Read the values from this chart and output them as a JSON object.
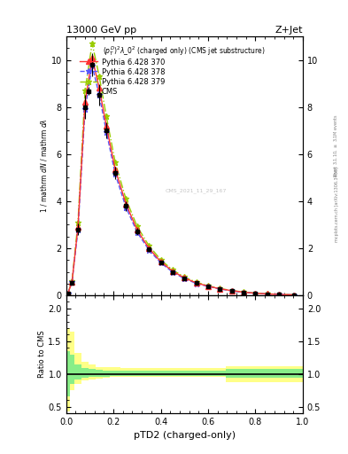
{
  "title_top": "13000 GeV pp",
  "title_right": "Z+Jet",
  "subplot_title": "$(p_T^D)^2\\lambda\\_0^2$ (charged only) (CMS jet substructure)",
  "xlabel": "pTD2 (charged-only)",
  "watermark": "CMS_2021_11_29_167",
  "x_edges": [
    0.0,
    0.015,
    0.035,
    0.065,
    0.095,
    0.125,
    0.155,
    0.185,
    0.23,
    0.275,
    0.325,
    0.375,
    0.425,
    0.475,
    0.525,
    0.575,
    0.625,
    0.675,
    0.725,
    0.775,
    0.825,
    0.875,
    0.925,
    1.0
  ],
  "cms_y": [
    0.08,
    0.55,
    2.8,
    8.0,
    9.8,
    8.5,
    7.0,
    5.2,
    3.8,
    2.7,
    1.95,
    1.4,
    1.0,
    0.72,
    0.52,
    0.38,
    0.27,
    0.19,
    0.13,
    0.09,
    0.06,
    0.04,
    0.02
  ],
  "cms_yerr": [
    0.01,
    0.08,
    0.25,
    0.5,
    0.5,
    0.45,
    0.35,
    0.28,
    0.2,
    0.15,
    0.1,
    0.08,
    0.06,
    0.04,
    0.03,
    0.02,
    0.015,
    0.01,
    0.008,
    0.005,
    0.003,
    0.002,
    0.001
  ],
  "pythia370_y": [
    0.08,
    0.58,
    2.9,
    8.2,
    10.1,
    8.8,
    7.2,
    5.35,
    3.9,
    2.78,
    2.0,
    1.43,
    1.03,
    0.74,
    0.53,
    0.39,
    0.28,
    0.2,
    0.135,
    0.092,
    0.062,
    0.041,
    0.022
  ],
  "pythia378_y": [
    0.08,
    0.56,
    2.78,
    7.9,
    9.75,
    8.5,
    6.95,
    5.15,
    3.75,
    2.68,
    1.93,
    1.38,
    0.99,
    0.71,
    0.51,
    0.38,
    0.27,
    0.19,
    0.13,
    0.088,
    0.059,
    0.04,
    0.021
  ],
  "pythia379_y": [
    0.085,
    0.62,
    3.1,
    8.7,
    10.7,
    9.3,
    7.6,
    5.65,
    4.1,
    2.93,
    2.11,
    1.51,
    1.08,
    0.78,
    0.56,
    0.41,
    0.29,
    0.21,
    0.14,
    0.097,
    0.065,
    0.043,
    0.023
  ],
  "x_band_edges": [
    0.0,
    0.015,
    0.035,
    0.065,
    0.095,
    0.125,
    0.155,
    0.185,
    0.23,
    0.275,
    0.325,
    0.375,
    0.425,
    0.475,
    0.525,
    0.575,
    0.625,
    0.675,
    0.725,
    0.775,
    0.825,
    0.875,
    0.925,
    1.0
  ],
  "yellow_band_low": [
    0.42,
    0.75,
    0.85,
    0.9,
    0.92,
    0.93,
    0.94,
    0.95,
    0.95,
    0.96,
    0.95,
    0.96,
    0.96,
    0.96,
    0.96,
    0.96,
    0.96,
    0.88,
    0.88,
    0.88,
    0.88,
    0.88,
    0.88
  ],
  "yellow_band_high": [
    1.7,
    1.65,
    1.32,
    1.18,
    1.14,
    1.11,
    1.1,
    1.1,
    1.09,
    1.09,
    1.09,
    1.09,
    1.09,
    1.09,
    1.09,
    1.09,
    1.09,
    1.12,
    1.12,
    1.12,
    1.12,
    1.12,
    1.12
  ],
  "green_band_low": [
    0.65,
    0.85,
    0.91,
    0.94,
    0.95,
    0.96,
    0.96,
    0.97,
    0.97,
    0.97,
    0.97,
    0.97,
    0.97,
    0.97,
    0.97,
    0.97,
    0.97,
    0.94,
    0.94,
    0.94,
    0.94,
    0.94,
    0.94
  ],
  "green_band_high": [
    1.35,
    1.3,
    1.14,
    1.09,
    1.07,
    1.06,
    1.05,
    1.05,
    1.05,
    1.05,
    1.05,
    1.05,
    1.05,
    1.05,
    1.05,
    1.05,
    1.05,
    1.07,
    1.07,
    1.07,
    1.07,
    1.07,
    1.07
  ],
  "xlim": [
    0,
    1
  ],
  "ylim_main": [
    0,
    11
  ],
  "ylim_ratio": [
    0.4,
    2.2
  ],
  "yticks_main": [
    0,
    2,
    4,
    6,
    8,
    10
  ],
  "yticks_ratio": [
    0.5,
    1.0,
    1.5,
    2.0
  ],
  "color_370": "#FF3333",
  "color_378": "#5555FF",
  "color_379": "#99CC00",
  "color_cms": "#000000",
  "legend_labels": [
    "CMS",
    "Pythia 6.428 370",
    "Pythia 6.428 378",
    "Pythia 6.428 379"
  ]
}
